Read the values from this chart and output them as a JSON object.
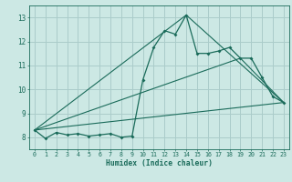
{
  "xlabel": "Humidex (Indice chaleur)",
  "bg_color": "#cce8e4",
  "grid_color": "#aaccca",
  "line_color": "#1a6b5a",
  "xlim": [
    -0.5,
    23.5
  ],
  "ylim": [
    7.5,
    13.5
  ],
  "xticks": [
    0,
    1,
    2,
    3,
    4,
    5,
    6,
    7,
    8,
    9,
    10,
    11,
    12,
    13,
    14,
    15,
    16,
    17,
    18,
    19,
    20,
    21,
    22,
    23
  ],
  "yticks": [
    8,
    9,
    10,
    11,
    12,
    13
  ],
  "line1_x": [
    0,
    1,
    2,
    3,
    4,
    5,
    6,
    7,
    8,
    9,
    10,
    11,
    12,
    13,
    14,
    15,
    16,
    17,
    18,
    19,
    20,
    21,
    22,
    23
  ],
  "line1_y": [
    8.3,
    7.95,
    8.2,
    8.1,
    8.15,
    8.05,
    8.1,
    8.15,
    8.0,
    8.05,
    10.4,
    11.75,
    12.45,
    12.3,
    13.1,
    11.5,
    11.5,
    11.6,
    11.75,
    11.3,
    11.3,
    10.5,
    9.7,
    9.45
  ],
  "line2_x": [
    0,
    23
  ],
  "line2_y": [
    8.3,
    9.45
  ],
  "line3_x": [
    0,
    14,
    23
  ],
  "line3_y": [
    8.3,
    13.1,
    9.45
  ],
  "line4_x": [
    0,
    19,
    23
  ],
  "line4_y": [
    8.3,
    11.3,
    9.45
  ]
}
